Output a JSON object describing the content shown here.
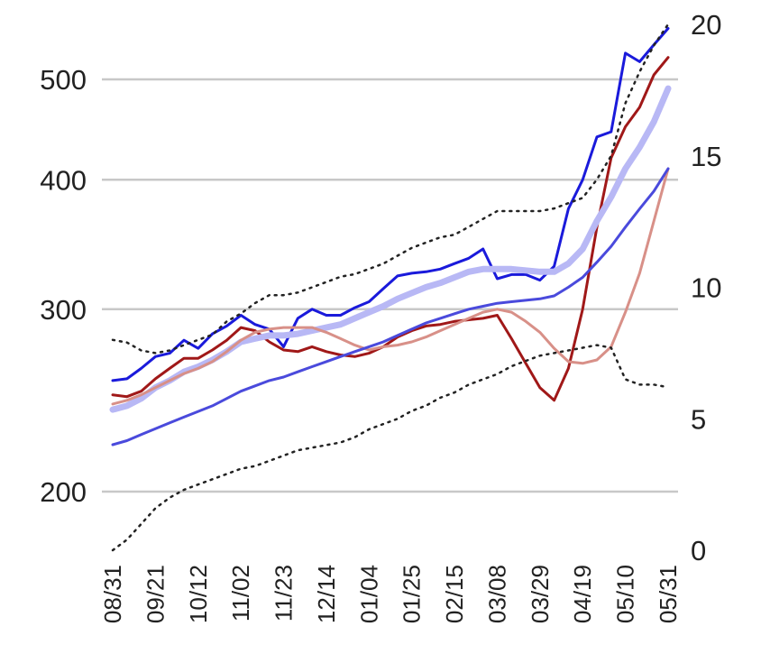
{
  "chart_data": {
    "type": "line",
    "title": "",
    "xlabel": "",
    "ylabel": "",
    "y_left": {
      "scale": "log",
      "ticks": [
        200,
        300,
        400,
        500
      ],
      "range": [
        180,
        570
      ]
    },
    "y_right": {
      "scale": "linear",
      "ticks": [
        0,
        5,
        10,
        15,
        20
      ],
      "range": [
        0,
        20
      ]
    },
    "grid": true,
    "legend": "none",
    "x_tick_labels": [
      "08/31",
      "09/21",
      "10/12",
      "11/02",
      "11/23",
      "12/14",
      "01/04",
      "01/25",
      "02/15",
      "03/08",
      "03/29",
      "04/19",
      "05/10",
      "05/31"
    ],
    "x": [
      "08/31",
      "09/07",
      "09/14",
      "09/21",
      "09/28",
      "10/05",
      "10/12",
      "10/19",
      "10/26",
      "11/02",
      "11/09",
      "11/16",
      "11/23",
      "11/30",
      "12/07",
      "12/14",
      "12/21",
      "12/28",
      "01/04",
      "01/11",
      "01/18",
      "01/25",
      "02/01",
      "02/08",
      "02/15",
      "02/22",
      "03/01",
      "03/08",
      "03/15",
      "03/22",
      "03/29",
      "04/05",
      "04/12",
      "04/19",
      "04/26",
      "05/03",
      "05/10",
      "05/17",
      "05/24",
      "05/31"
    ],
    "series": [
      {
        "axis": "left",
        "color": "#1a1adb",
        "width": 3,
        "values": [
          256,
          257,
          263,
          270,
          272,
          280,
          275,
          284,
          289,
          296,
          290,
          287,
          276,
          294,
          300,
          296,
          296,
          301,
          305,
          314,
          323,
          325,
          326,
          328,
          332,
          336,
          343,
          321,
          324,
          324,
          320,
          330,
          375,
          400,
          440,
          445,
          530,
          520,
          540,
          560
        ]
      },
      {
        "axis": "left",
        "color": "#a01818",
        "width": 3,
        "values": [
          248,
          247,
          250,
          257,
          263,
          269,
          269,
          274,
          280,
          288,
          286,
          279,
          274,
          273,
          276,
          273,
          271,
          270,
          272,
          276,
          282,
          286,
          289,
          290,
          292,
          293,
          294,
          296,
          281,
          266,
          252,
          245,
          263,
          300,
          360,
          420,
          450,
          470,
          505,
          525
        ]
      },
      {
        "axis": "left",
        "color": "#b8b8f5",
        "width": 7,
        "values": [
          240,
          242,
          246,
          252,
          256,
          261,
          264,
          268,
          273,
          279,
          281,
          283,
          283,
          284,
          286,
          288,
          290,
          294,
          298,
          302,
          307,
          311,
          315,
          318,
          322,
          326,
          328,
          328,
          328,
          327,
          326,
          326,
          332,
          343,
          365,
          385,
          410,
          430,
          455,
          490
        ]
      },
      {
        "axis": "left",
        "color": "#d89088",
        "width": 3,
        "values": [
          243,
          245,
          248,
          252,
          256,
          260,
          263,
          267,
          273,
          280,
          285,
          287,
          288,
          288,
          288,
          285,
          281,
          277,
          274,
          276,
          277,
          279,
          282,
          286,
          290,
          294,
          298,
          300,
          298,
          292,
          285,
          275,
          267,
          266,
          268,
          276,
          298,
          325,
          365,
          410
        ]
      },
      {
        "axis": "left",
        "color": "#4a4adc",
        "width": 3,
        "values": [
          222,
          224,
          227,
          230,
          233,
          236,
          239,
          242,
          246,
          250,
          253,
          256,
          258,
          261,
          264,
          267,
          270,
          273,
          276,
          279,
          283,
          287,
          291,
          294,
          297,
          300,
          302,
          304,
          305,
          306,
          307,
          309,
          315,
          322,
          333,
          345,
          360,
          375,
          390,
          410
        ]
      },
      {
        "axis": "right",
        "color": "#222222",
        "dash": true,
        "width": 2.5,
        "values": [
          8.0,
          7.9,
          7.6,
          7.5,
          7.6,
          7.8,
          8.0,
          8.2,
          8.7,
          9.0,
          9.4,
          9.7,
          9.7,
          9.8,
          10.0,
          10.2,
          10.4,
          10.5,
          10.7,
          10.9,
          11.2,
          11.5,
          11.7,
          11.9,
          12.0,
          12.3,
          12.6,
          12.9,
          12.9,
          12.9,
          12.9,
          13.0,
          13.2,
          13.4,
          14.1,
          15.0,
          17.0,
          18.2,
          19.2,
          20.0
        ]
      },
      {
        "axis": "right",
        "color": "#222222",
        "dash": true,
        "width": 2.5,
        "values": [
          0.0,
          0.4,
          1.0,
          1.6,
          2.0,
          2.3,
          2.5,
          2.7,
          2.9,
          3.1,
          3.2,
          3.4,
          3.6,
          3.8,
          3.9,
          4.0,
          4.1,
          4.3,
          4.6,
          4.8,
          5.0,
          5.3,
          5.5,
          5.8,
          6.0,
          6.3,
          6.5,
          6.7,
          7.0,
          7.2,
          7.4,
          7.5,
          7.6,
          7.7,
          7.8,
          7.7,
          6.5,
          6.3,
          6.3,
          6.2
        ]
      }
    ]
  }
}
